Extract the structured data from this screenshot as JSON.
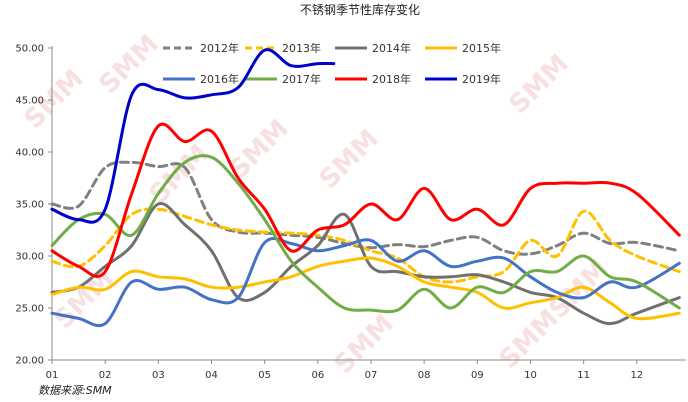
{
  "chart_data": {
    "type": "line",
    "title": "不锈钢季节性库存变化",
    "source": "数据来源:SMM",
    "watermark": "SMM",
    "xlabel": "",
    "ylabel": "",
    "ylim": [
      20,
      50
    ],
    "yticks": [
      "20.00",
      "25.00",
      "30.00",
      "35.00",
      "40.00",
      "45.00",
      "50.00"
    ],
    "categories": [
      "01",
      "02",
      "03",
      "04",
      "05",
      "06",
      "07",
      "08",
      "09",
      "10",
      "11",
      "12"
    ],
    "grid": false,
    "legend": "top",
    "series": [
      {
        "name": "2012年",
        "color": "#808080",
        "dash": "dash",
        "x": [
          1,
          1.5,
          2,
          2.5,
          3,
          3.5,
          4,
          4.5,
          5,
          5.5,
          6,
          6.5,
          7,
          7.5,
          8,
          8.5,
          9,
          9.5,
          10,
          10.5,
          11,
          11.5,
          12,
          12.8
        ],
        "y": [
          35.0,
          34.8,
          38.5,
          39.0,
          38.6,
          38.5,
          33.5,
          32.3,
          32.2,
          32.0,
          31.8,
          31.2,
          30.8,
          31.1,
          30.9,
          31.5,
          31.8,
          30.5,
          30.2,
          31.0,
          32.2,
          31.2,
          31.3,
          30.5
        ]
      },
      {
        "name": "2013年",
        "color": "#ffc000",
        "dash": "dash",
        "x": [
          1,
          1.5,
          2,
          2.5,
          3,
          3.5,
          4,
          4.5,
          5,
          5.5,
          6,
          6.5,
          7,
          7.5,
          8,
          8.5,
          9,
          9.5,
          10,
          10.5,
          11,
          11.5,
          12,
          12.8
        ],
        "y": [
          29.5,
          29.0,
          31.0,
          34.0,
          34.5,
          33.8,
          33.0,
          32.5,
          32.3,
          32.2,
          32.0,
          31.5,
          30.5,
          29.8,
          28.0,
          27.5,
          28.0,
          28.5,
          31.5,
          30.0,
          34.3,
          31.5,
          30.0,
          28.5
        ]
      },
      {
        "name": "2014年",
        "color": "#707070",
        "dash": "solid",
        "x": [
          1,
          1.5,
          2,
          2.5,
          3,
          3.5,
          4,
          4.5,
          5,
          5.5,
          6,
          6.5,
          7,
          7.5,
          8,
          8.5,
          9,
          9.5,
          10,
          10.5,
          11,
          11.5,
          12,
          12.8
        ],
        "y": [
          26.5,
          27.0,
          29.0,
          31.0,
          35.0,
          33.0,
          30.5,
          26.0,
          26.5,
          29.0,
          31.0,
          34.0,
          29.0,
          28.5,
          28.0,
          28.0,
          28.2,
          27.5,
          26.5,
          26.0,
          24.5,
          23.5,
          24.5,
          26.0
        ]
      },
      {
        "name": "2015年",
        "color": "#ffc000",
        "dash": "solid",
        "x": [
          1,
          1.5,
          2,
          2.5,
          3,
          3.5,
          4,
          4.5,
          5,
          5.5,
          6,
          6.5,
          7,
          7.5,
          8,
          8.5,
          9,
          9.5,
          10,
          10.5,
          11,
          11.5,
          12,
          12.8
        ],
        "y": [
          26.3,
          27.0,
          26.8,
          28.5,
          28.0,
          27.8,
          27.0,
          27.0,
          27.5,
          28.0,
          29.0,
          29.5,
          29.8,
          29.0,
          27.5,
          27.0,
          26.5,
          25.0,
          25.5,
          26.0,
          27.0,
          25.5,
          24.0,
          24.5
        ]
      },
      {
        "name": "2016年",
        "color": "#4472c4",
        "dash": "solid",
        "x": [
          1,
          1.5,
          2,
          2.5,
          3,
          3.5,
          4,
          4.5,
          5,
          5.5,
          6,
          6.5,
          7,
          7.5,
          8,
          8.5,
          9,
          9.5,
          10,
          10.5,
          11,
          11.5,
          12,
          12.8
        ],
        "y": [
          24.5,
          24.0,
          23.5,
          27.5,
          26.8,
          27.0,
          25.8,
          26.0,
          31.3,
          31.2,
          30.5,
          31.0,
          31.5,
          29.5,
          30.5,
          29.0,
          29.5,
          29.8,
          28.0,
          26.5,
          26.0,
          27.5,
          27.0,
          29.3
        ]
      },
      {
        "name": "2017年",
        "color": "#70ad47",
        "dash": "solid",
        "x": [
          1,
          1.5,
          2,
          2.5,
          3,
          3.5,
          4,
          4.5,
          5,
          5.5,
          6,
          6.5,
          7,
          7.5,
          8,
          8.5,
          9,
          9.5,
          10,
          10.5,
          11,
          11.5,
          12,
          12.8
        ],
        "y": [
          31.0,
          33.5,
          34.0,
          32.0,
          36.0,
          39.0,
          39.5,
          37.0,
          33.5,
          29.5,
          27.0,
          25.0,
          24.8,
          24.8,
          26.8,
          25.0,
          27.0,
          26.5,
          28.5,
          28.5,
          30.0,
          28.0,
          27.5,
          25.0
        ]
      },
      {
        "name": "2018年",
        "color": "#ff0000",
        "dash": "solid",
        "x": [
          1,
          1.5,
          2,
          2.5,
          3,
          3.5,
          4,
          4.5,
          5,
          5.5,
          6,
          6.5,
          7,
          7.5,
          8,
          8.5,
          9,
          9.5,
          10,
          10.5,
          11,
          11.5,
          12,
          12.8
        ],
        "y": [
          30.5,
          29.0,
          28.5,
          36.0,
          42.5,
          41.0,
          42.0,
          37.5,
          34.5,
          30.5,
          32.5,
          33.0,
          35.0,
          33.5,
          36.5,
          33.5,
          34.5,
          33.0,
          36.5,
          37.0,
          37.0,
          37.0,
          36.0,
          32.0
        ]
      },
      {
        "name": "2019年",
        "color": "#0000cc",
        "dash": "solid",
        "x": [
          1,
          1.5,
          2,
          2.5,
          3,
          3.5,
          4,
          4.5,
          5,
          5.5,
          6,
          6.3
        ],
        "y": [
          34.5,
          33.5,
          34.5,
          45.5,
          46.0,
          45.2,
          45.5,
          46.2,
          49.8,
          48.3,
          48.5,
          48.5
        ]
      }
    ]
  }
}
